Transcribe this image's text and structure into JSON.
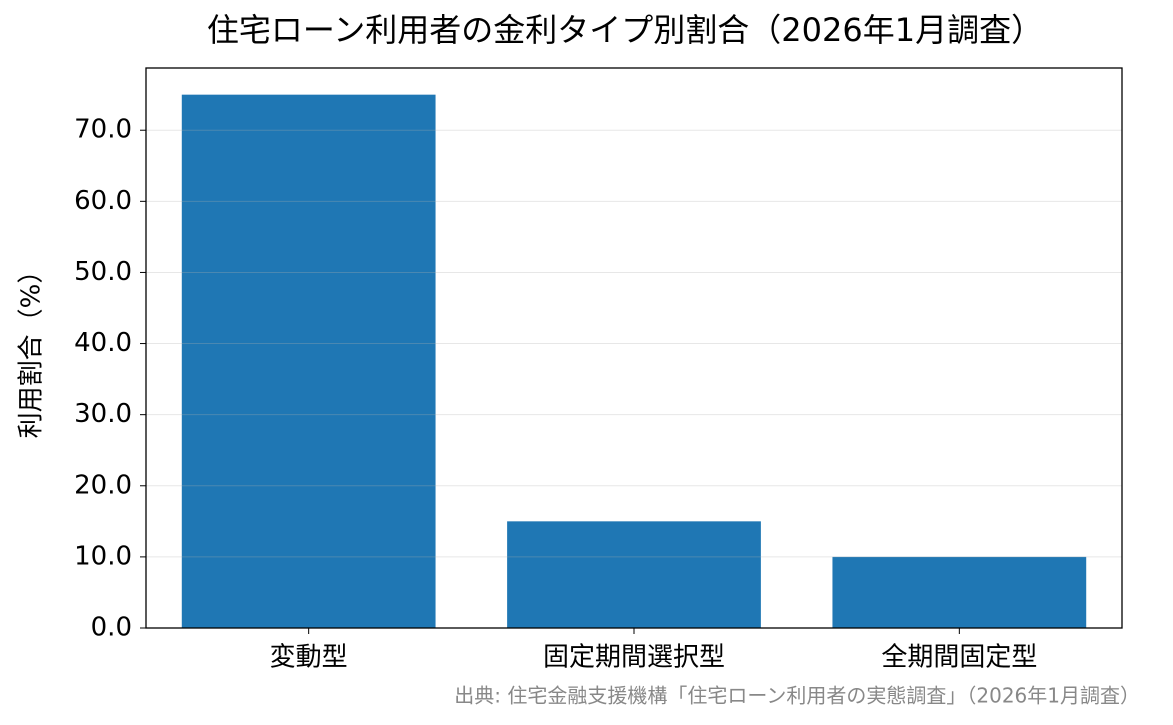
{
  "chart_data": {
    "type": "bar",
    "title": "住宅ローン利用者の金利タイプ別割合（2026年1月調査）",
    "y_label": "利用割合（%）",
    "source": "出典: 住宅金融支援機構「住宅ローン利用者の実態調査」（2026年1月調査）",
    "categories": [
      "変動型",
      "固定期間選択型",
      "全期間固定型"
    ],
    "values": [
      75,
      15,
      10
    ],
    "color": "#1f77b4",
    "ylim": [
      0,
      78.75
    ],
    "yticks": [
      {
        "value": 0,
        "label": "0.0"
      },
      {
        "value": 10,
        "label": "10.0"
      },
      {
        "value": 20,
        "label": "20.0"
      },
      {
        "value": 30,
        "label": "30.0"
      },
      {
        "value": 40,
        "label": "40.0"
      },
      {
        "value": 50,
        "label": "50.0"
      },
      {
        "value": 60,
        "label": "60.0"
      },
      {
        "value": 70,
        "label": "70.0"
      }
    ],
    "grid": true
  }
}
